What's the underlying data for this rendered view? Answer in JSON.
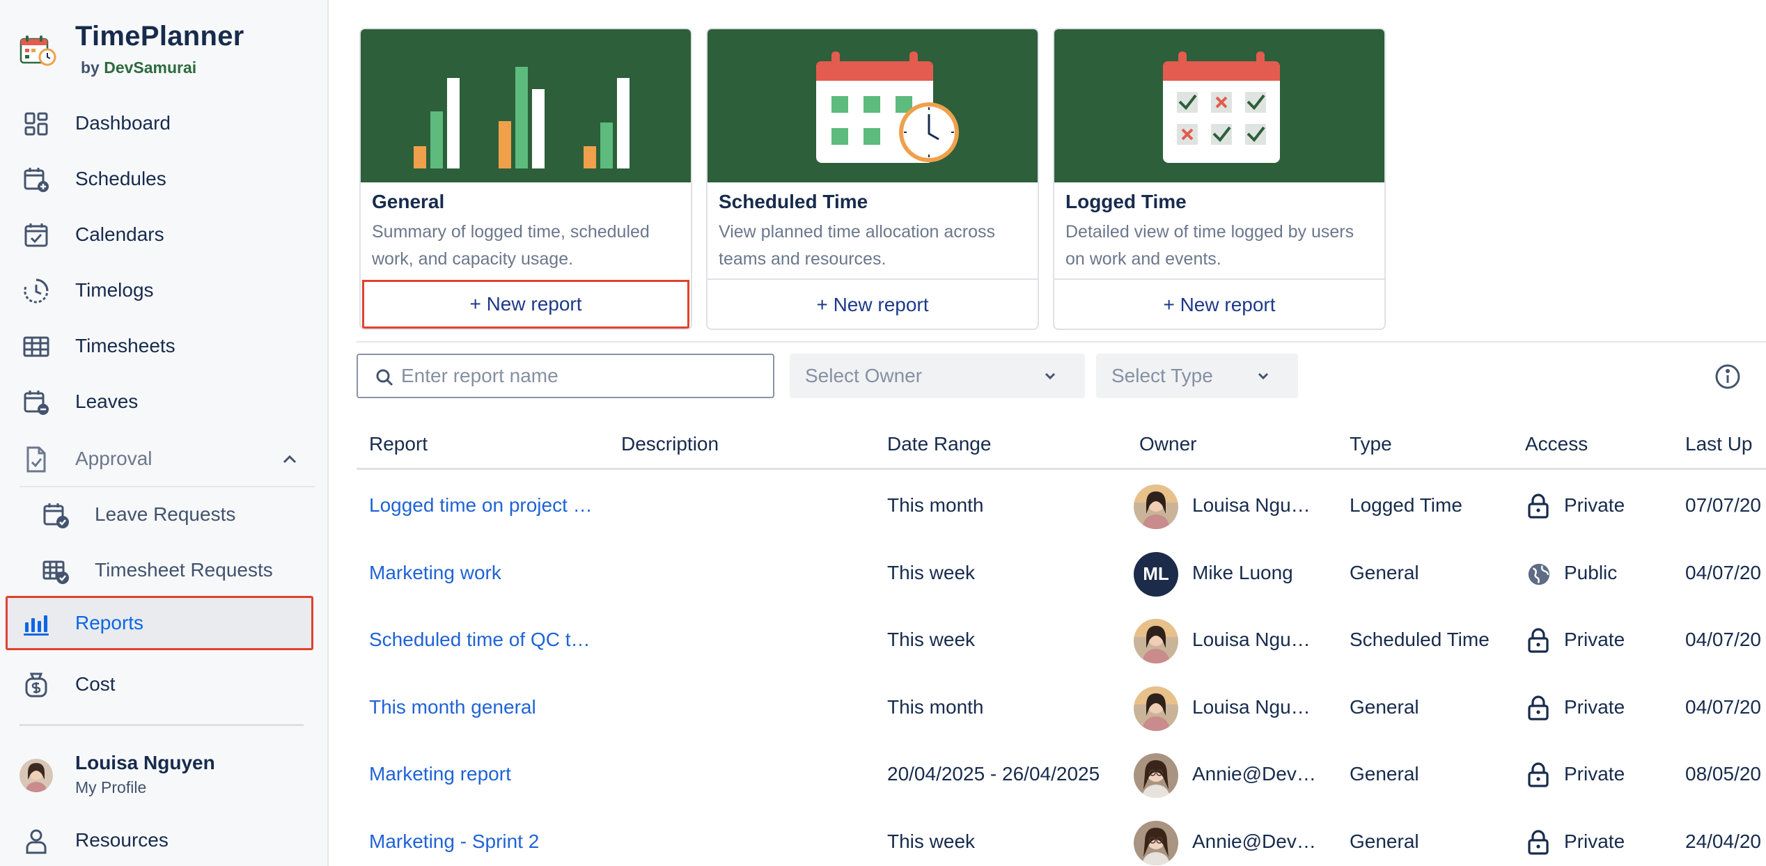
{
  "brand": {
    "name": "TimePlanner",
    "by": "by",
    "company": "DevSamurai"
  },
  "sidebar": {
    "items": [
      {
        "label": "Dashboard"
      },
      {
        "label": "Schedules"
      },
      {
        "label": "Calendars"
      },
      {
        "label": "Timelogs"
      },
      {
        "label": "Timesheets"
      },
      {
        "label": "Leaves"
      },
      {
        "label": "Approval"
      },
      {
        "label": "Leave Requests"
      },
      {
        "label": "Timesheet Requests"
      },
      {
        "label": "Reports"
      },
      {
        "label": "Cost"
      },
      {
        "label": "Resources"
      }
    ],
    "active": "Reports",
    "profile": {
      "name": "Louisa Nguyen",
      "sub": "My Profile"
    }
  },
  "templates": [
    {
      "title": "General",
      "desc": "Summary of logged time, scheduled work, and capacity usage.",
      "button": "+ New report"
    },
    {
      "title": "Scheduled Time",
      "desc": "View planned time allocation across teams and resources.",
      "button": "+ New report"
    },
    {
      "title": "Logged Time",
      "desc": "Detailed view of time logged by users on work and events.",
      "button": "+ New report"
    }
  ],
  "filters": {
    "search_placeholder": "Enter report name",
    "owner_placeholder": "Select Owner",
    "type_placeholder": "Select Type"
  },
  "table": {
    "columns": [
      "Report",
      "Description",
      "Date Range",
      "Owner",
      "Type",
      "Access",
      "Last Up"
    ],
    "rows": [
      {
        "report": "Logged time on project …",
        "description": "",
        "date_range": "This month",
        "owner": "Louisa Ngu…",
        "avatar": "photo-louisa",
        "type": "Logged Time",
        "access": "Private",
        "last": "07/07/20"
      },
      {
        "report": "Marketing work",
        "description": "",
        "date_range": "This week",
        "owner": "Mike Luong",
        "avatar": "initials",
        "initials": "ML",
        "type": "General",
        "access": "Public",
        "last": "04/07/20"
      },
      {
        "report": "Scheduled time of QC t…",
        "description": "",
        "date_range": "This week",
        "owner": "Louisa Ngu…",
        "avatar": "photo-louisa",
        "type": "Scheduled Time",
        "access": "Private",
        "last": "04/07/20"
      },
      {
        "report": "This month general",
        "description": "",
        "date_range": "This month",
        "owner": "Louisa Ngu…",
        "avatar": "photo-louisa",
        "type": "General",
        "access": "Private",
        "last": "04/07/20"
      },
      {
        "report": "Marketing report",
        "description": "",
        "date_range": "20/04/2025 - 26/04/2025",
        "owner": "Annie@Dev…",
        "avatar": "photo-annie",
        "type": "General",
        "access": "Private",
        "last": "08/05/20"
      },
      {
        "report": "Marketing - Sprint 2",
        "description": "",
        "date_range": "This week",
        "owner": "Annie@Dev…",
        "avatar": "photo-annie",
        "type": "General",
        "access": "Private",
        "last": "24/04/20"
      }
    ]
  },
  "colors": {
    "banner": "#2c5f3a",
    "link": "#1f63d6",
    "highlight": "#e0412f",
    "brand_green": "#2d6a3f"
  }
}
